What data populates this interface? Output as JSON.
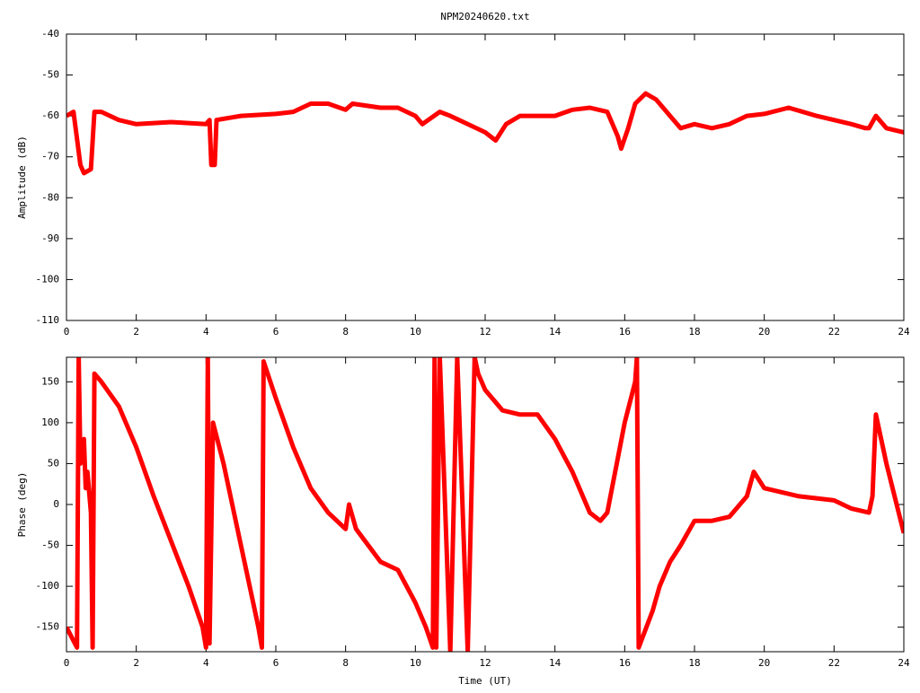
{
  "chart_data": [
    {
      "type": "line",
      "title": "NPM20240620.txt",
      "y_label": "Amplitude (dB)",
      "xlim": [
        0,
        24
      ],
      "xticks": [
        0,
        2,
        4,
        6,
        8,
        10,
        12,
        14,
        16,
        18,
        20,
        22,
        24
      ],
      "ylim": [
        -110,
        -40
      ],
      "yticks": [
        -110,
        -100,
        -90,
        -80,
        -70,
        -60,
        -50,
        -40
      ],
      "series": [
        {
          "color": "#ff0000",
          "x": [
            0,
            0.2,
            0.4,
            0.5,
            0.7,
            0.8,
            1,
            1.5,
            2,
            3,
            4,
            4.1,
            4.15,
            4.25,
            4.3,
            5,
            6,
            6.5,
            7,
            7.5,
            8,
            8.2,
            9,
            9.5,
            10,
            10.2,
            10.7,
            11,
            11.5,
            12,
            12.3,
            12.6,
            13,
            14,
            14.5,
            15,
            15.5,
            15.8,
            15.9,
            16.1,
            16.3,
            16.6,
            16.9,
            17.3,
            17.6,
            18,
            18.5,
            19,
            19.5,
            20,
            20.7,
            21.5,
            22,
            22.5,
            22.9,
            23,
            23.2,
            23.5,
            24
          ],
          "values": [
            -60,
            -59,
            -72,
            -74,
            -73,
            -59,
            -59,
            -61,
            -62,
            -61.5,
            -62,
            -61,
            -72,
            -72,
            -61,
            -60,
            -59.5,
            -59,
            -57,
            -57,
            -58.5,
            -57,
            -58,
            -58,
            -60,
            -62,
            -59,
            -60,
            -62,
            -64,
            -66,
            -62,
            -60,
            -60,
            -58.5,
            -58,
            -59,
            -65,
            -68,
            -63,
            -57,
            -54.5,
            -56,
            -60,
            -63,
            -62,
            -63,
            -62,
            -60,
            -59.5,
            -58,
            -60,
            -61,
            -62,
            -63,
            -63,
            -60,
            -63,
            -64
          ]
        }
      ]
    },
    {
      "type": "line",
      "x_label": "Time (UT)",
      "y_label": "Phase (deg)",
      "xlim": [
        0,
        24
      ],
      "xticks": [
        0,
        2,
        4,
        6,
        8,
        10,
        12,
        14,
        16,
        18,
        20,
        22,
        24
      ],
      "ylim": [
        -180,
        180
      ],
      "yticks": [
        -150,
        -100,
        -50,
        0,
        50,
        100,
        150
      ],
      "series": [
        {
          "color": "#ff0000",
          "x": [
            0,
            0.3,
            0.35,
            0.4,
            0.5,
            0.55,
            0.6,
            0.7,
            0.75,
            0.8,
            1,
            1.5,
            2,
            2.5,
            3,
            3.5,
            3.9,
            4.0,
            4.05,
            4.1,
            4.2,
            4.5,
            5,
            5.5,
            5.6,
            5.65,
            6,
            6.5,
            7,
            7.5,
            8,
            8.1,
            8.3,
            9,
            9.5,
            10,
            10.3,
            10.5,
            10.55,
            10.6,
            10.7,
            11,
            11.2,
            11.5,
            11.7,
            11.8,
            12,
            12.5,
            13,
            13.5,
            14,
            14.5,
            15,
            15.3,
            15.5,
            16,
            16.3,
            16.35,
            16.4,
            16.8,
            17,
            17.3,
            17.6,
            18,
            18.5,
            19,
            19.5,
            19.7,
            20,
            21,
            22,
            22.5,
            23,
            23.1,
            23.2,
            23.5,
            24
          ],
          "values": [
            -150,
            -175,
            180,
            50,
            80,
            20,
            40,
            -10,
            -175,
            160,
            150,
            120,
            70,
            10,
            -45,
            -100,
            -150,
            -175,
            180,
            -170,
            100,
            50,
            -50,
            -150,
            -175,
            175,
            130,
            70,
            20,
            -10,
            -30,
            0,
            -30,
            -70,
            -80,
            -120,
            -150,
            -175,
            180,
            -175,
            180,
            -180,
            180,
            -180,
            180,
            160,
            140,
            115,
            110,
            110,
            80,
            40,
            -10,
            -20,
            -10,
            100,
            150,
            180,
            -175,
            -130,
            -100,
            -70,
            -50,
            -20,
            -20,
            -15,
            10,
            40,
            20,
            10,
            5,
            -5,
            -10,
            10,
            110,
            50,
            -35
          ]
        }
      ]
    }
  ]
}
